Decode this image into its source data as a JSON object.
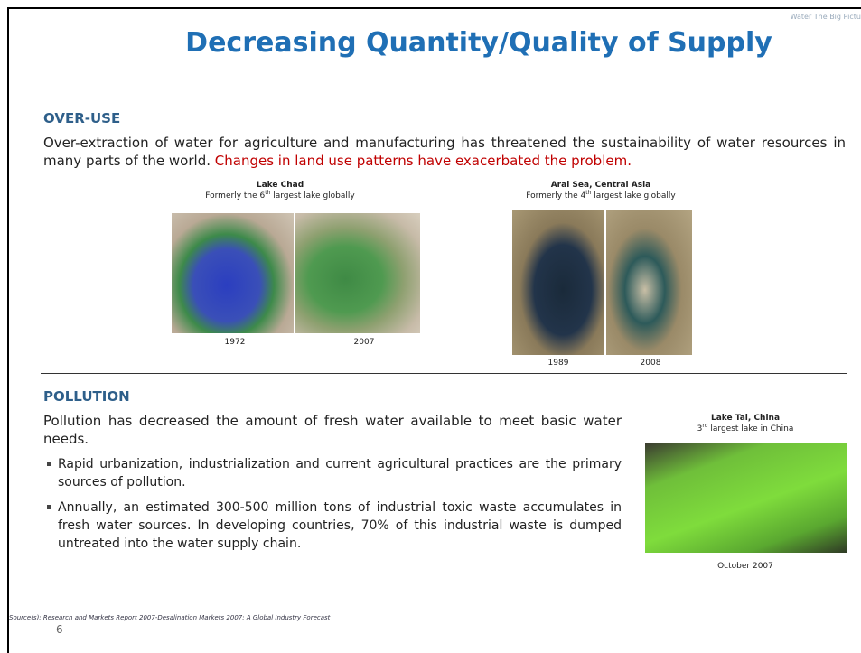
{
  "header": {
    "running_title": "Water The Big Pictu",
    "title": "Decreasing Quantity/Quality of Supply"
  },
  "overuse": {
    "heading": "OVER-USE",
    "text": "Over-extraction of water for agriculture and manufacturing has threatened the sustainability of water resources in many parts of the world.",
    "highlight": "Changes in land use patterns have exacerbated the problem.",
    "figures": [
      {
        "title": "Lake Chad",
        "subtitle": {
          "before": "Formerly the 6",
          "sup": "th",
          "after": " largest lake globally"
        },
        "years": [
          "1972",
          "2007"
        ]
      },
      {
        "title": "Aral Sea, Central Asia",
        "subtitle": {
          "before": "Formerly the 4",
          "sup": "th",
          "after": " largest lake globally"
        },
        "years": [
          "1989",
          "2008"
        ]
      }
    ]
  },
  "pollution": {
    "heading": "POLLUTION",
    "text": "Pollution has decreased the amount of fresh water available to meet basic water needs.",
    "bullets": [
      "Rapid urbanization, industrialization and current agricultural practices are the primary sources of pollution.",
      "Annually, an estimated 300-500 million tons of industrial toxic waste accumulates in fresh water sources.  In developing countries, 70% of this industrial waste is dumped untreated into the water supply chain."
    ],
    "figure": {
      "title": "Lake Tai, China",
      "subtitle": {
        "before": "3",
        "sup": "rd",
        "after": " largest lake in China"
      },
      "caption": "October 2007"
    }
  },
  "footer": {
    "source": "Source(s):  Research and Markets Report 2007-Desalination Markets 2007: A Global Industry Forecast",
    "page_number": "6"
  }
}
